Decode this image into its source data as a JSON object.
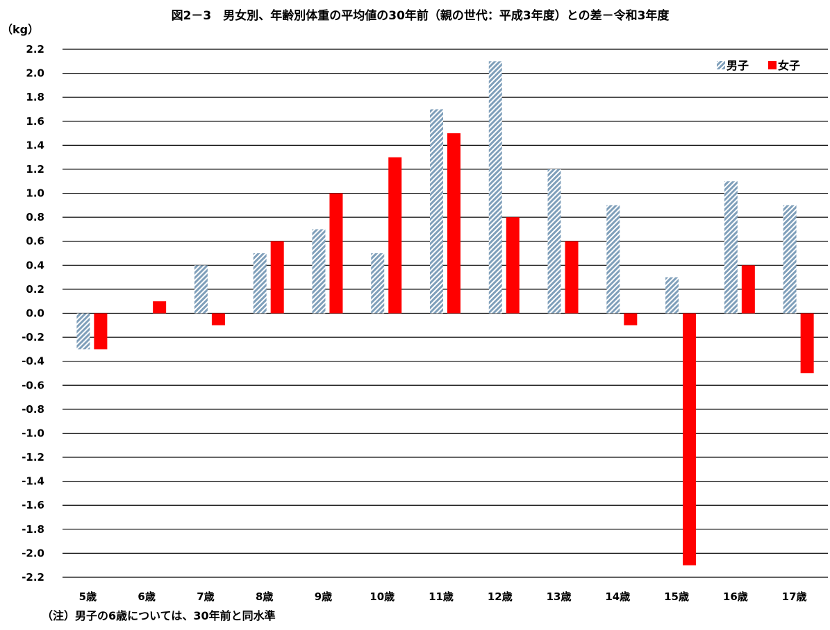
{
  "chart_data": {
    "type": "bar",
    "title": "図2－3　男女別、年齢別体重の平均値の30年前（親の世代：平成3年度）との差－令和3年度",
    "ylabel": "（kg）",
    "xlabel": "",
    "categories": [
      "5歳",
      "6歳",
      "7歳",
      "8歳",
      "9歳",
      "10歳",
      "11歳",
      "12歳",
      "13歳",
      "14歳",
      "15歳",
      "16歳",
      "17歳"
    ],
    "series": [
      {
        "name": "男子",
        "values": [
          -0.3,
          0.0,
          0.4,
          0.5,
          0.7,
          0.5,
          1.7,
          2.1,
          1.2,
          0.9,
          0.3,
          1.1,
          0.9
        ]
      },
      {
        "name": "女子",
        "values": [
          -0.3,
          0.1,
          -0.1,
          0.6,
          1.0,
          1.3,
          1.5,
          0.8,
          0.6,
          -0.1,
          -2.1,
          0.4,
          -0.5
        ]
      }
    ],
    "ylim": [
      -2.2,
      2.2
    ],
    "ytick_step": 0.2,
    "ytick_labels": [
      "2.2",
      "2.0",
      "1.8",
      "1.6",
      "1.4",
      "1.2",
      "1.0",
      "0.8",
      "0.6",
      "0.4",
      "0.2",
      "0.0",
      "-0.2",
      "-0.4",
      "-0.6",
      "-0.8",
      "-1.0",
      "-1.2",
      "-1.4",
      "-1.6",
      "-1.8",
      "-2.0",
      "-2.2"
    ],
    "grid": true,
    "legend_position": "top-right",
    "colors": {
      "男子": "#7f9fba",
      "女子": "#ff0000"
    },
    "note": "（注）男子の6歳については、30年前と同水準"
  }
}
